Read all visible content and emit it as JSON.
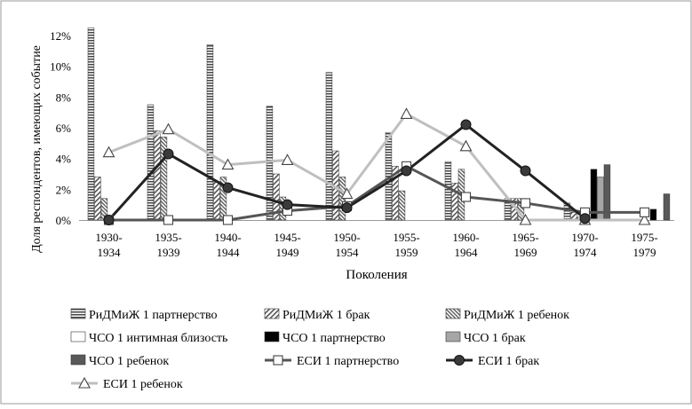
{
  "chart_data": {
    "type": "bar",
    "xlabel": "Поколения",
    "ylabel": "Доля респондентов, имеющих событие",
    "categories": [
      [
        "1930-",
        "1934"
      ],
      [
        "1935-",
        "1939"
      ],
      [
        "1940-",
        "1944"
      ],
      [
        "1945-",
        "1949"
      ],
      [
        "1950-",
        "1954"
      ],
      [
        "1955-",
        "1959"
      ],
      [
        "1960-",
        "1964"
      ],
      [
        "1965-",
        "1969"
      ],
      [
        "1970-",
        "1974"
      ],
      [
        "1975-",
        "1979"
      ]
    ],
    "ylim": [
      0,
      13
    ],
    "yticks": [
      "0%",
      "2%",
      "4%",
      "6%",
      "8%",
      "10%",
      "12%"
    ],
    "ytick_values": [
      0,
      2,
      4,
      6,
      8,
      10,
      12
    ],
    "legend_position": "bottom",
    "grid": false,
    "bar_series": [
      {
        "name": "РиДМиЖ 1 партнерство",
        "pattern": "hstripe",
        "values": [
          12.5,
          7.5,
          11.4,
          7.4,
          9.6,
          5.7,
          3.8,
          1.4,
          1.1,
          0
        ]
      },
      {
        "name": "РиДМиЖ 1 брак",
        "pattern": "diag",
        "values": [
          2.8,
          5.8,
          2.5,
          3.0,
          4.5,
          3.5,
          2.4,
          1.4,
          0.5,
          0
        ]
      },
      {
        "name": "РиДМиЖ 1 ребенок",
        "pattern": "diag2",
        "values": [
          1.4,
          5.4,
          2.8,
          1.5,
          2.8,
          1.9,
          3.3,
          1.4,
          0.2,
          0
        ]
      },
      {
        "name": "ЧСО 1 интимная близость",
        "pattern": "white",
        "values": [
          0,
          0,
          0,
          0,
          0,
          0,
          0,
          0,
          0,
          0
        ]
      },
      {
        "name": "ЧСО 1 партнерство",
        "pattern": "black",
        "values": [
          0,
          0,
          0,
          0,
          0,
          0,
          0,
          0,
          3.3,
          0.7
        ]
      },
      {
        "name": "ЧСО 1 брак",
        "pattern": "lightgray",
        "values": [
          0,
          0,
          0,
          0,
          0,
          0,
          0,
          0,
          2.8,
          0
        ]
      },
      {
        "name": "ЧСО 1 ребенок",
        "pattern": "darkgray",
        "values": [
          0,
          0,
          0,
          0,
          0,
          0,
          0,
          0,
          3.6,
          1.7
        ]
      }
    ],
    "line_series": [
      {
        "name": "ЕСИ 1 партнерство",
        "color": "#555555",
        "marker": "square",
        "values": [
          0,
          0,
          0,
          0.6,
          0.9,
          3.5,
          1.5,
          1.1,
          0.5,
          0.5
        ]
      },
      {
        "name": "ЕСИ 1 брак",
        "color": "#222222",
        "marker": "circle",
        "values": [
          0,
          4.3,
          2.1,
          1.0,
          0.8,
          3.2,
          6.2,
          3.2,
          0.1,
          null
        ]
      },
      {
        "name": "ЕСИ 1 ребенок",
        "color": "#bfbfbf",
        "marker": "triangle",
        "values": [
          4.4,
          5.9,
          3.6,
          3.9,
          1.7,
          6.9,
          4.8,
          0,
          0,
          0
        ]
      }
    ]
  }
}
